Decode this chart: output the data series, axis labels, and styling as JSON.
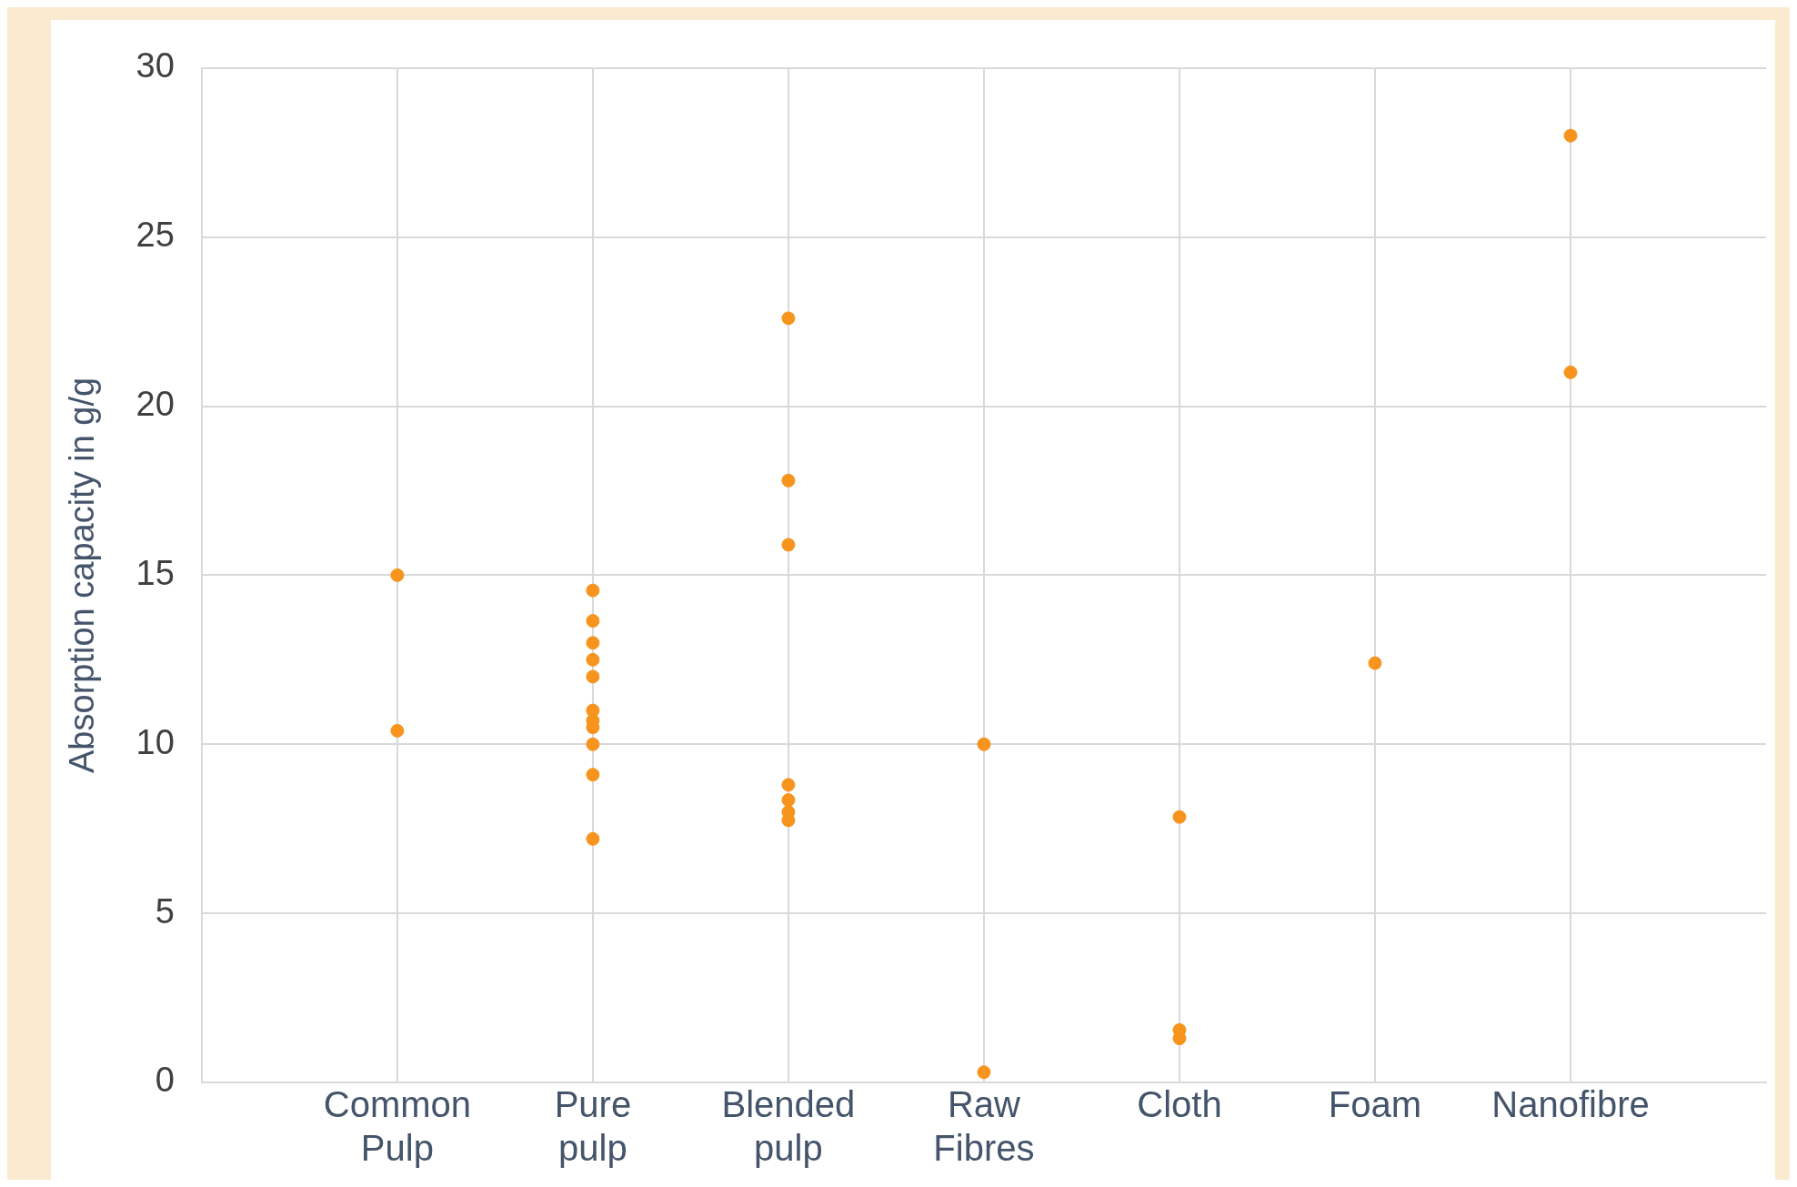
{
  "chart_data": {
    "type": "scatter",
    "ylabel": "Absorption capacity in g/g",
    "categories": [
      "Common Pulp",
      "Pure pulp",
      "Blended pulp",
      "Raw Fibres",
      "Cloth",
      "Foam",
      "Nanofibre"
    ],
    "series": [
      {
        "color": "#f7941d",
        "x": [
          "Common Pulp",
          "Common Pulp",
          "Pure pulp",
          "Pure pulp",
          "Pure pulp",
          "Pure pulp",
          "Pure pulp",
          "Pure pulp",
          "Pure pulp",
          "Pure pulp",
          "Pure pulp",
          "Pure pulp",
          "Pure pulp",
          "Blended pulp",
          "Blended pulp",
          "Blended pulp",
          "Blended pulp",
          "Blended pulp",
          "Blended pulp",
          "Blended pulp",
          "Raw Fibres",
          "Raw Fibres",
          "Cloth",
          "Cloth",
          "Cloth",
          "Foam",
          "Nanofibre",
          "Nanofibre"
        ],
        "values": [
          15,
          10.4,
          14.55,
          13.65,
          13,
          12.5,
          12,
          11,
          10.7,
          10.5,
          10,
          9.1,
          7.2,
          22.6,
          17.8,
          15.9,
          8.8,
          8.35,
          8,
          7.75,
          10,
          0.3,
          7.85,
          1.55,
          1.3,
          12.4,
          28,
          21
        ]
      }
    ],
    "ylim": [
      0,
      30
    ],
    "yticks": [
      0,
      5,
      10,
      15,
      20,
      25,
      30
    ],
    "grid": true,
    "legend": false,
    "marker": "circle"
  }
}
